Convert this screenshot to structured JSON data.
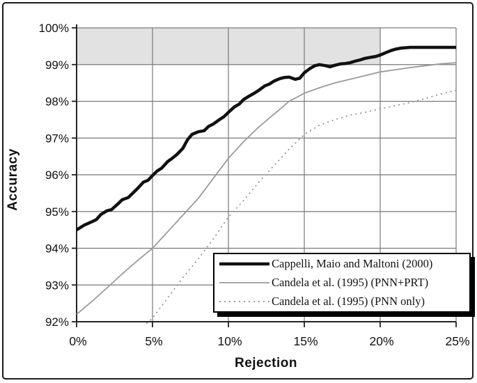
{
  "figure": {
    "xlabel": "Rejection",
    "ylabel": "Accuracy"
  },
  "chart_data": {
    "type": "line",
    "title": "",
    "xlabel": "Rejection",
    "ylabel": "Accuracy",
    "xlim": [
      0,
      25
    ],
    "ylim": [
      92,
      100
    ],
    "grid": true,
    "x_tick_values": [
      0,
      5,
      10,
      15,
      20,
      25
    ],
    "x_tick_labels": [
      "0%",
      "5%",
      "10%",
      "15%",
      "20%",
      "25%"
    ],
    "y_tick_values": [
      92,
      93,
      94,
      95,
      96,
      97,
      98,
      99,
      100
    ],
    "y_tick_labels": [
      "92%",
      "93%",
      "94%",
      "95%",
      "96%",
      "97%",
      "98%",
      "99%",
      "100%"
    ],
    "shaded_band": {
      "x": [
        0,
        20
      ],
      "y": [
        99,
        100
      ],
      "fill": "#e2e2e2"
    },
    "legend_position": "inside-bottom-right",
    "colors": {
      "gridline": "#787878",
      "axis": "#222222"
    },
    "series": [
      {
        "name": "Cappelli, Maio and Maltoni (2000)",
        "color": "#111111",
        "width": 4.5,
        "dash": null,
        "points": [
          [
            0,
            94.5
          ],
          [
            0.5,
            94.63
          ],
          [
            1,
            94.72
          ],
          [
            1.3,
            94.78
          ],
          [
            1.6,
            94.92
          ],
          [
            2,
            95.02
          ],
          [
            2.3,
            95.05
          ],
          [
            2.7,
            95.2
          ],
          [
            3,
            95.32
          ],
          [
            3.4,
            95.38
          ],
          [
            3.7,
            95.5
          ],
          [
            4,
            95.62
          ],
          [
            4.4,
            95.8
          ],
          [
            4.7,
            95.85
          ],
          [
            5,
            95.98
          ],
          [
            5.3,
            96.1
          ],
          [
            5.6,
            96.18
          ],
          [
            6,
            96.36
          ],
          [
            6.3,
            96.45
          ],
          [
            6.6,
            96.55
          ],
          [
            7,
            96.72
          ],
          [
            7.3,
            96.95
          ],
          [
            7.6,
            97.1
          ],
          [
            8,
            97.17
          ],
          [
            8.4,
            97.2
          ],
          [
            8.7,
            97.32
          ],
          [
            9,
            97.38
          ],
          [
            9.4,
            97.5
          ],
          [
            9.7,
            97.58
          ],
          [
            10,
            97.7
          ],
          [
            10.4,
            97.85
          ],
          [
            10.7,
            97.92
          ],
          [
            11,
            98.05
          ],
          [
            11.4,
            98.15
          ],
          [
            11.7,
            98.22
          ],
          [
            12,
            98.3
          ],
          [
            12.4,
            98.42
          ],
          [
            12.7,
            98.47
          ],
          [
            13,
            98.55
          ],
          [
            13.4,
            98.62
          ],
          [
            13.7,
            98.65
          ],
          [
            14,
            98.66
          ],
          [
            14.4,
            98.6
          ],
          [
            14.7,
            98.63
          ],
          [
            15,
            98.78
          ],
          [
            15.4,
            98.9
          ],
          [
            15.7,
            98.97
          ],
          [
            16,
            99.0
          ],
          [
            16.4,
            98.97
          ],
          [
            16.7,
            98.94
          ],
          [
            17,
            98.98
          ],
          [
            17.4,
            99.02
          ],
          [
            17.7,
            99.03
          ],
          [
            18,
            99.05
          ],
          [
            18.4,
            99.1
          ],
          [
            18.7,
            99.13
          ],
          [
            19,
            99.17
          ],
          [
            19.4,
            99.2
          ],
          [
            19.7,
            99.22
          ],
          [
            20,
            99.26
          ],
          [
            20.4,
            99.33
          ],
          [
            20.7,
            99.38
          ],
          [
            21,
            99.42
          ],
          [
            21.4,
            99.45
          ],
          [
            21.7,
            99.46
          ],
          [
            22,
            99.47
          ],
          [
            23,
            99.47
          ],
          [
            24,
            99.47
          ],
          [
            25,
            99.47
          ]
        ]
      },
      {
        "name": "Candela et al. (1995) (PNN+PRT)",
        "color": "#9a9a9a",
        "width": 1.8,
        "dash": null,
        "points": [
          [
            0,
            92.2
          ],
          [
            1,
            92.55
          ],
          [
            2,
            92.92
          ],
          [
            3,
            93.3
          ],
          [
            4,
            93.66
          ],
          [
            5,
            94.0
          ],
          [
            6,
            94.45
          ],
          [
            7,
            94.9
          ],
          [
            8,
            95.35
          ],
          [
            9,
            95.9
          ],
          [
            10,
            96.45
          ],
          [
            11,
            96.9
          ],
          [
            12,
            97.3
          ],
          [
            13,
            97.65
          ],
          [
            14,
            98.0
          ],
          [
            15,
            98.22
          ],
          [
            16,
            98.37
          ],
          [
            17,
            98.5
          ],
          [
            18,
            98.6
          ],
          [
            19,
            98.7
          ],
          [
            20,
            98.8
          ],
          [
            21,
            98.86
          ],
          [
            22,
            98.92
          ],
          [
            23,
            98.97
          ],
          [
            24,
            99.02
          ],
          [
            25,
            99.05
          ]
        ]
      },
      {
        "name": "Candela et al. (1995) (PNN only)",
        "color": "#8e8e8e",
        "width": 1.7,
        "dash": "2 5",
        "points": [
          [
            4.6,
            91.95
          ],
          [
            5,
            92.1
          ],
          [
            6,
            92.65
          ],
          [
            7,
            93.2
          ],
          [
            8,
            93.7
          ],
          [
            9,
            94.25
          ],
          [
            10,
            94.85
          ],
          [
            11,
            95.3
          ],
          [
            12,
            95.8
          ],
          [
            13,
            96.25
          ],
          [
            14,
            96.7
          ],
          [
            15,
            97.1
          ],
          [
            16,
            97.35
          ],
          [
            17,
            97.5
          ],
          [
            18,
            97.62
          ],
          [
            19,
            97.7
          ],
          [
            20,
            97.8
          ],
          [
            21,
            97.88
          ],
          [
            22,
            97.97
          ],
          [
            23,
            98.08
          ],
          [
            24,
            98.2
          ],
          [
            25,
            98.3
          ]
        ]
      }
    ]
  }
}
